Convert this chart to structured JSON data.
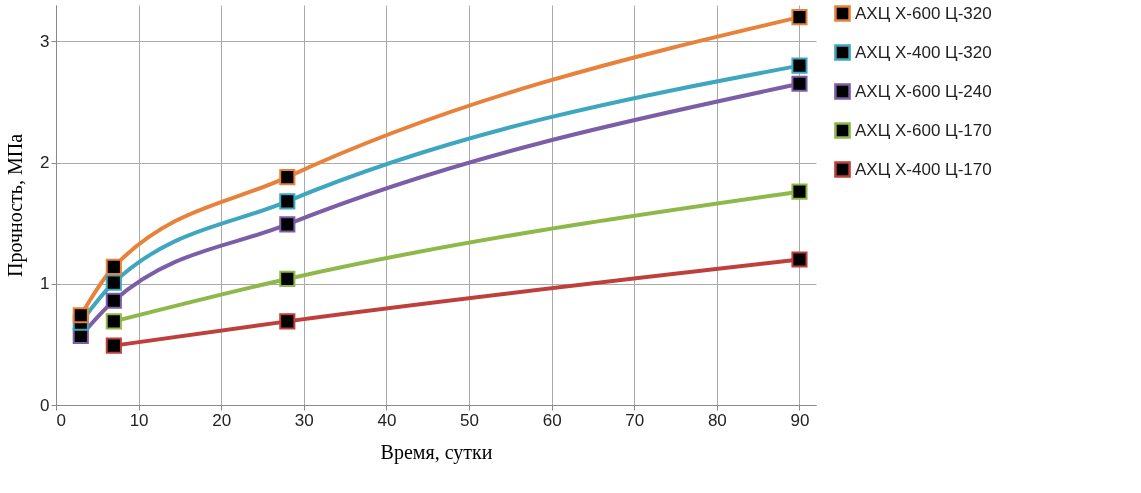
{
  "chart_data": {
    "type": "line",
    "xlabel": "Время, сутки",
    "ylabel": "Прочность, МПа",
    "xlim": [
      0,
      92
    ],
    "xticks": [
      0,
      10,
      20,
      30,
      40,
      50,
      60,
      70,
      80,
      90
    ],
    "ylim": [
      0,
      3.3
    ],
    "yticks": [
      0,
      1,
      2,
      3
    ],
    "grid": true,
    "legend": "right",
    "marker": "square",
    "line_style": "solid",
    "series": [
      {
        "name": "АХЦ Х-600 Ц-320",
        "color": "#e8823a",
        "x": [
          3,
          7,
          28,
          90
        ],
        "values": [
          0.74,
          1.14,
          1.88,
          3.2
        ]
      },
      {
        "name": "АХЦ Х-400 Ц-320",
        "color": "#3ea6bf",
        "x": [
          3,
          7,
          28,
          90
        ],
        "values": [
          0.68,
          1.01,
          1.68,
          2.8
        ]
      },
      {
        "name": "АХЦ Х-600 Ц-240",
        "color": "#7b5ea7",
        "x": [
          3,
          7,
          28,
          90
        ],
        "values": [
          0.57,
          0.86,
          1.49,
          2.65
        ]
      },
      {
        "name": "АХЦ Х-600 Ц-170",
        "color": "#8fb84a",
        "x": [
          7,
          28,
          90
        ],
        "values": [
          0.69,
          1.04,
          1.76
        ]
      },
      {
        "name": "АХЦ Х-400 Ц-170",
        "color": "#be3f3c",
        "x": [
          7,
          28,
          90
        ],
        "values": [
          0.49,
          0.69,
          1.2
        ]
      }
    ]
  }
}
